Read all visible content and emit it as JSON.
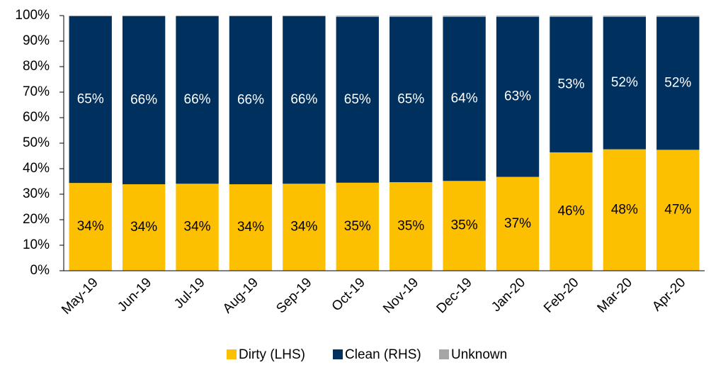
{
  "chart_data": {
    "type": "stacked_bar",
    "categories": [
      "May-19",
      "Jun-19",
      "Jul-19",
      "Aug-19",
      "Sep-19",
      "Oct-19",
      "Nov-19",
      "Dec-19",
      "Jan-20",
      "Feb-20",
      "Mar-20",
      "Apr-20"
    ],
    "series": [
      {
        "name": "Dirty (LHS)",
        "color": "#fcc000",
        "values": [
          34.4,
          33.9,
          34.1,
          33.9,
          34.1,
          34.5,
          34.7,
          35.2,
          36.8,
          46.4,
          47.6,
          47.4
        ],
        "value_labels": [
          "34%",
          "34%",
          "34%",
          "34%",
          "34%",
          "35%",
          "35%",
          "35%",
          "37%",
          "46%",
          "48%",
          "47%"
        ]
      },
      {
        "name": "Clean (RHS)",
        "color": "#00305e",
        "values": [
          65.4,
          65.9,
          65.7,
          65.9,
          65.7,
          65.0,
          64.8,
          64.3,
          62.7,
          53.1,
          51.9,
          52.1
        ],
        "value_labels": [
          "65%",
          "66%",
          "66%",
          "66%",
          "66%",
          "65%",
          "65%",
          "64%",
          "63%",
          "53%",
          "52%",
          "52%"
        ]
      },
      {
        "name": "Unknown",
        "color": "#a6a6a6",
        "values": [
          0.2,
          0.2,
          0.2,
          0.2,
          0.2,
          0.5,
          0.5,
          0.5,
          0.5,
          0.5,
          0.5,
          0.5
        ]
      }
    ],
    "ylim": [
      0,
      100
    ],
    "yticks": [
      {
        "value": 0,
        "label": "0%"
      },
      {
        "value": 10,
        "label": "10%"
      },
      {
        "value": 20,
        "label": "20%"
      },
      {
        "value": 30,
        "label": "30%"
      },
      {
        "value": 40,
        "label": "40%"
      },
      {
        "value": 50,
        "label": "50%"
      },
      {
        "value": 60,
        "label": "60%"
      },
      {
        "value": 70,
        "label": "70%"
      },
      {
        "value": 80,
        "label": "80%"
      },
      {
        "value": 90,
        "label": "90%"
      },
      {
        "value": 100,
        "label": "100%"
      }
    ],
    "legend": "bottom"
  }
}
